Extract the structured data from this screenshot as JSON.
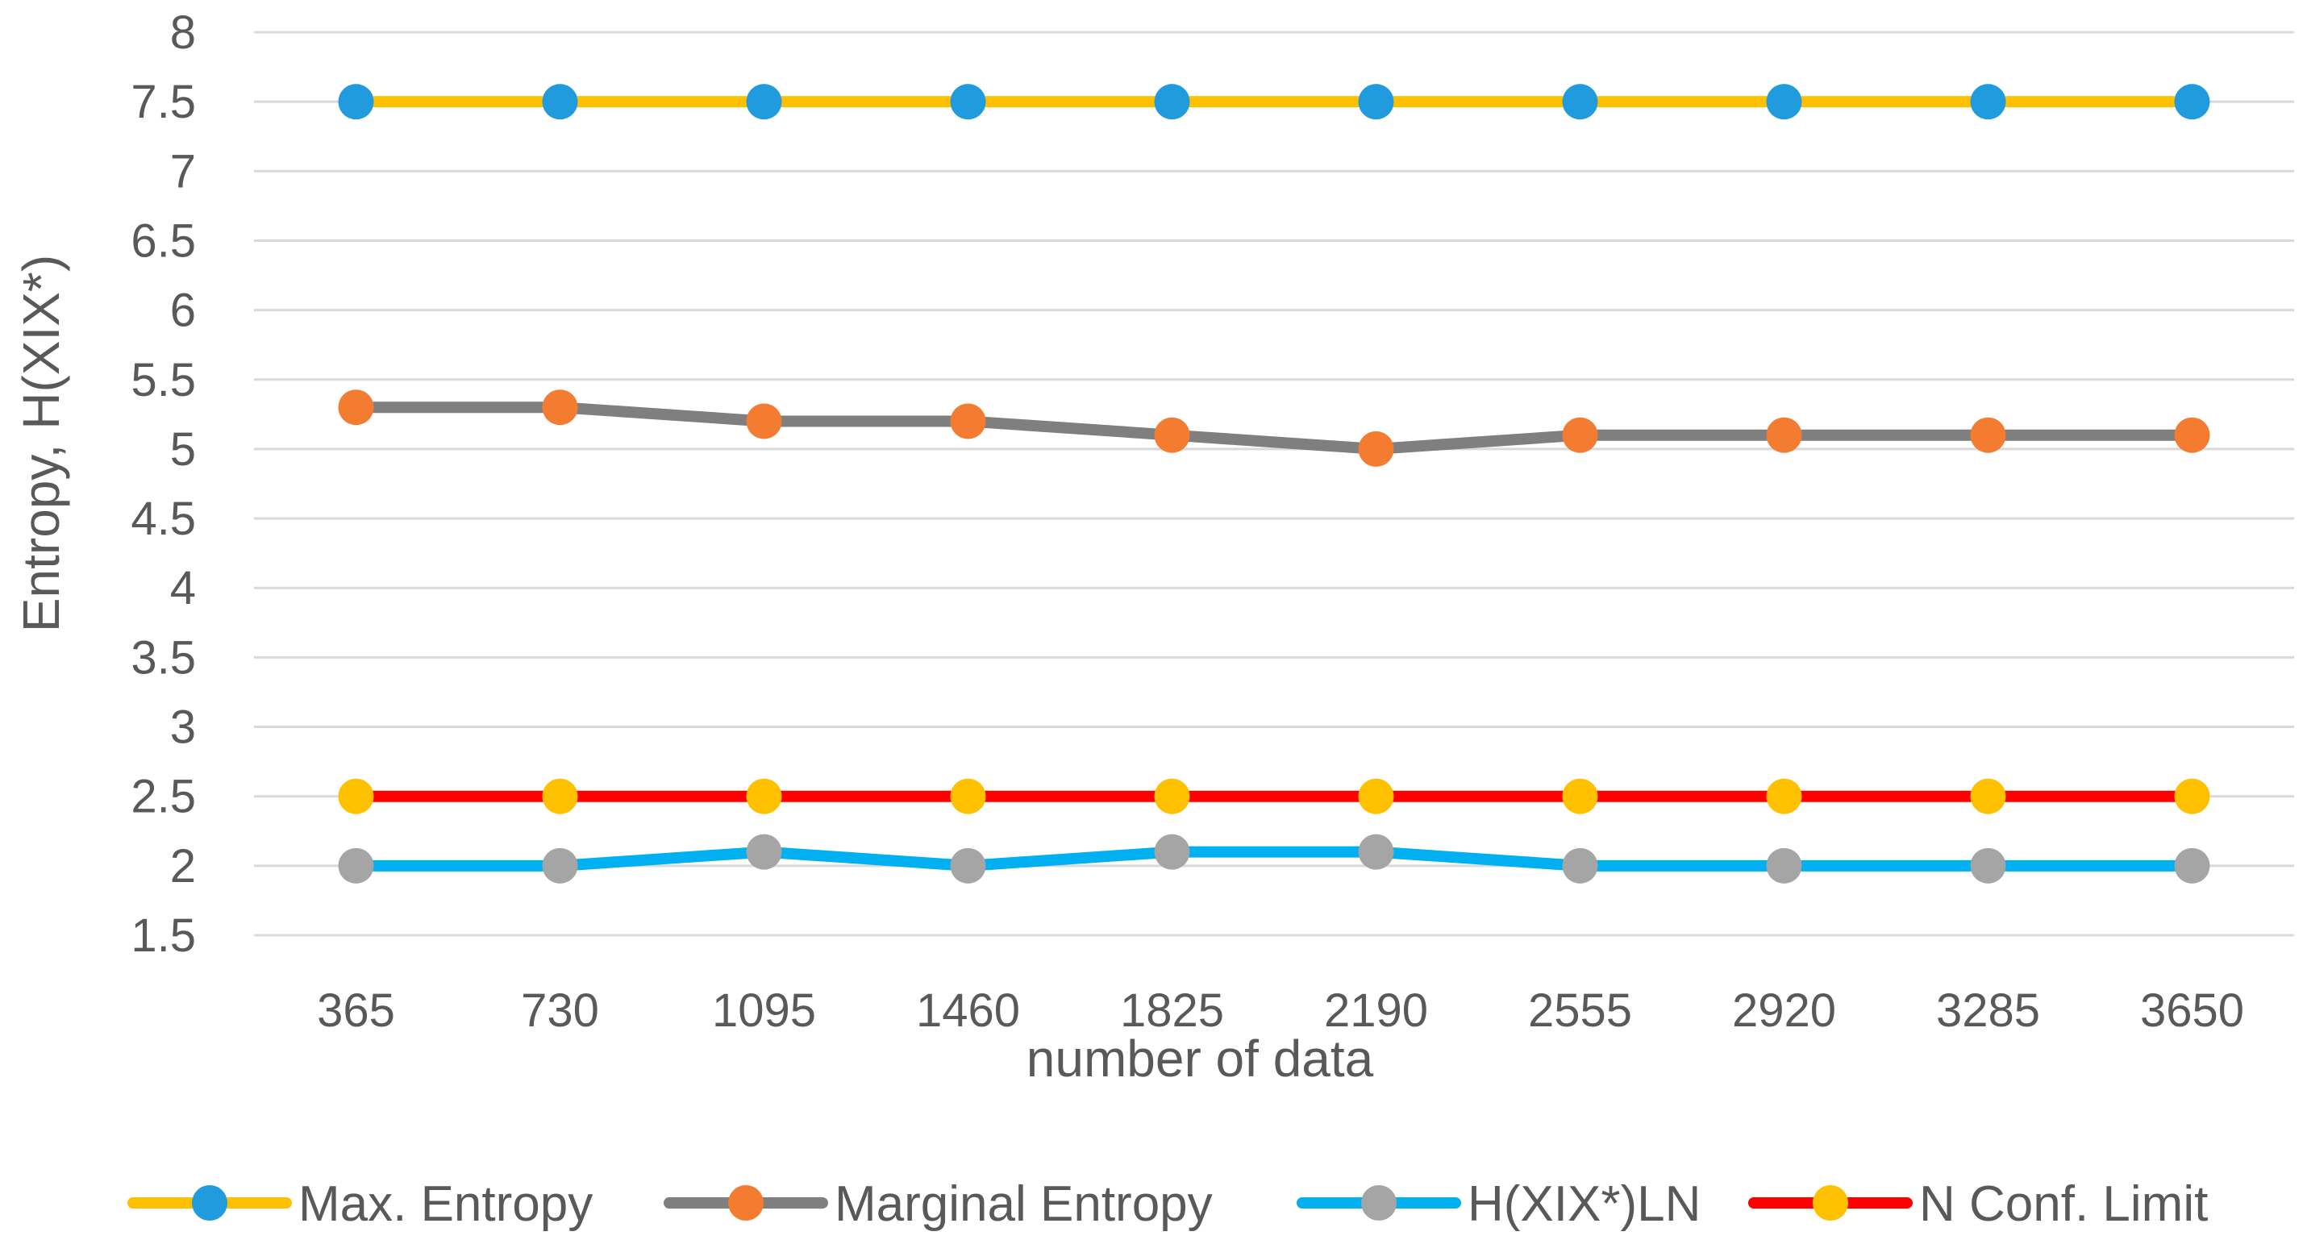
{
  "chart_data": {
    "type": "line",
    "title": "",
    "xlabel": "number of data",
    "ylabel": "Entropy, H(XIX*)",
    "categories": [
      "365",
      "730",
      "1095",
      "1460",
      "1825",
      "2190",
      "2555",
      "2920",
      "3285",
      "3650"
    ],
    "ylim": [
      1.5,
      8
    ],
    "y_ticks": [
      "1.5",
      "2",
      "2.5",
      "3",
      "3.5",
      "4",
      "4.5",
      "5",
      "5.5",
      "6",
      "6.5",
      "7",
      "7.5",
      "8"
    ],
    "grid": true,
    "legend_position": "bottom",
    "series": [
      {
        "name": "Max. Entropy",
        "values": [
          7.5,
          7.5,
          7.5,
          7.5,
          7.5,
          7.5,
          7.5,
          7.5,
          7.5,
          7.5
        ],
        "line_color": "#FFC000",
        "marker_color": "#1F9BDE"
      },
      {
        "name": "Marginal Entropy",
        "values": [
          5.3,
          5.3,
          5.2,
          5.2,
          5.1,
          5.0,
          5.1,
          5.1,
          5.1,
          5.1
        ],
        "line_color": "#7F7F7F",
        "marker_color": "#F47C30"
      },
      {
        "name": "H(XIX*)LN",
        "values": [
          2.0,
          2.0,
          2.1,
          2.0,
          2.1,
          2.1,
          2.0,
          2.0,
          2.0,
          2.0
        ],
        "line_color": "#00B0F0",
        "marker_color": "#A5A5A5"
      },
      {
        "name": "N Conf. Limit",
        "values": [
          2.5,
          2.5,
          2.5,
          2.5,
          2.5,
          2.5,
          2.5,
          2.5,
          2.5,
          2.5
        ],
        "line_color": "#FF0000",
        "marker_color": "#FFC000"
      }
    ]
  }
}
